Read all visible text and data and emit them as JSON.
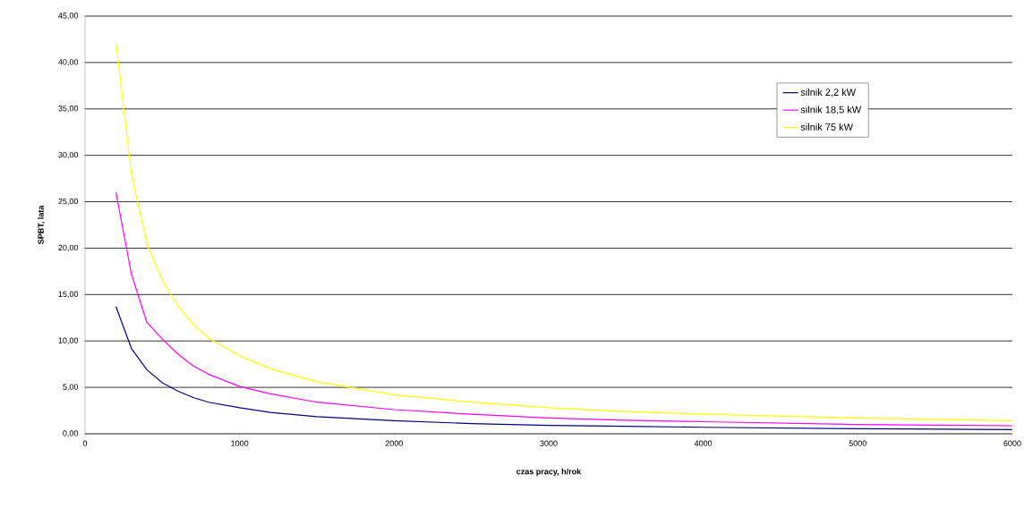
{
  "chart_data": {
    "type": "line",
    "xlabel": "czas pracy, h/rok",
    "ylabel": "SPBT, lata",
    "xlim": [
      0,
      6000
    ],
    "xticks": [
      0,
      1000,
      2000,
      3000,
      4000,
      5000,
      6000
    ],
    "ylim": [
      0,
      45
    ],
    "yticks": [
      {
        "value": 0,
        "label": "0,00"
      },
      {
        "value": 5,
        "label": "5,00"
      },
      {
        "value": 10,
        "label": "10,00"
      },
      {
        "value": 15,
        "label": "15,00"
      },
      {
        "value": 20,
        "label": "20,00"
      },
      {
        "value": 25,
        "label": "25,00"
      },
      {
        "value": 30,
        "label": "30,00"
      },
      {
        "value": 35,
        "label": "35,00"
      },
      {
        "value": 40,
        "label": "40,00"
      },
      {
        "value": 45,
        "label": "45,00"
      }
    ],
    "grid": "y",
    "legend": "top right",
    "marker": "none",
    "line_style": "solid",
    "x": [
      200,
      300,
      400,
      500,
      600,
      700,
      800,
      1000,
      1200,
      1500,
      2000,
      2500,
      3000,
      3500,
      4000,
      5000,
      6000
    ],
    "series": [
      {
        "name": "silnik 2,2 kW",
        "color": "#000080",
        "values": [
          13.7,
          9.2,
          6.9,
          5.5,
          4.6,
          3.9,
          3.4,
          2.8,
          2.3,
          1.85,
          1.4,
          1.1,
          0.9,
          0.8,
          0.7,
          0.55,
          0.45
        ]
      },
      {
        "name": "silnik 18,5 kW",
        "color": "#ff00ff",
        "values": [
          26,
          17.2,
          12.0,
          10.2,
          8.6,
          7.3,
          6.4,
          5.1,
          4.3,
          3.4,
          2.6,
          2.1,
          1.7,
          1.45,
          1.3,
          1.0,
          0.85
        ]
      },
      {
        "name": "silnik 75 kW",
        "color": "#ffff00",
        "values": [
          42.2,
          28,
          20.5,
          16.5,
          13.8,
          11.8,
          10.3,
          8.4,
          7.0,
          5.6,
          4.2,
          3.4,
          2.8,
          2.4,
          2.1,
          1.7,
          1.4
        ]
      }
    ]
  }
}
